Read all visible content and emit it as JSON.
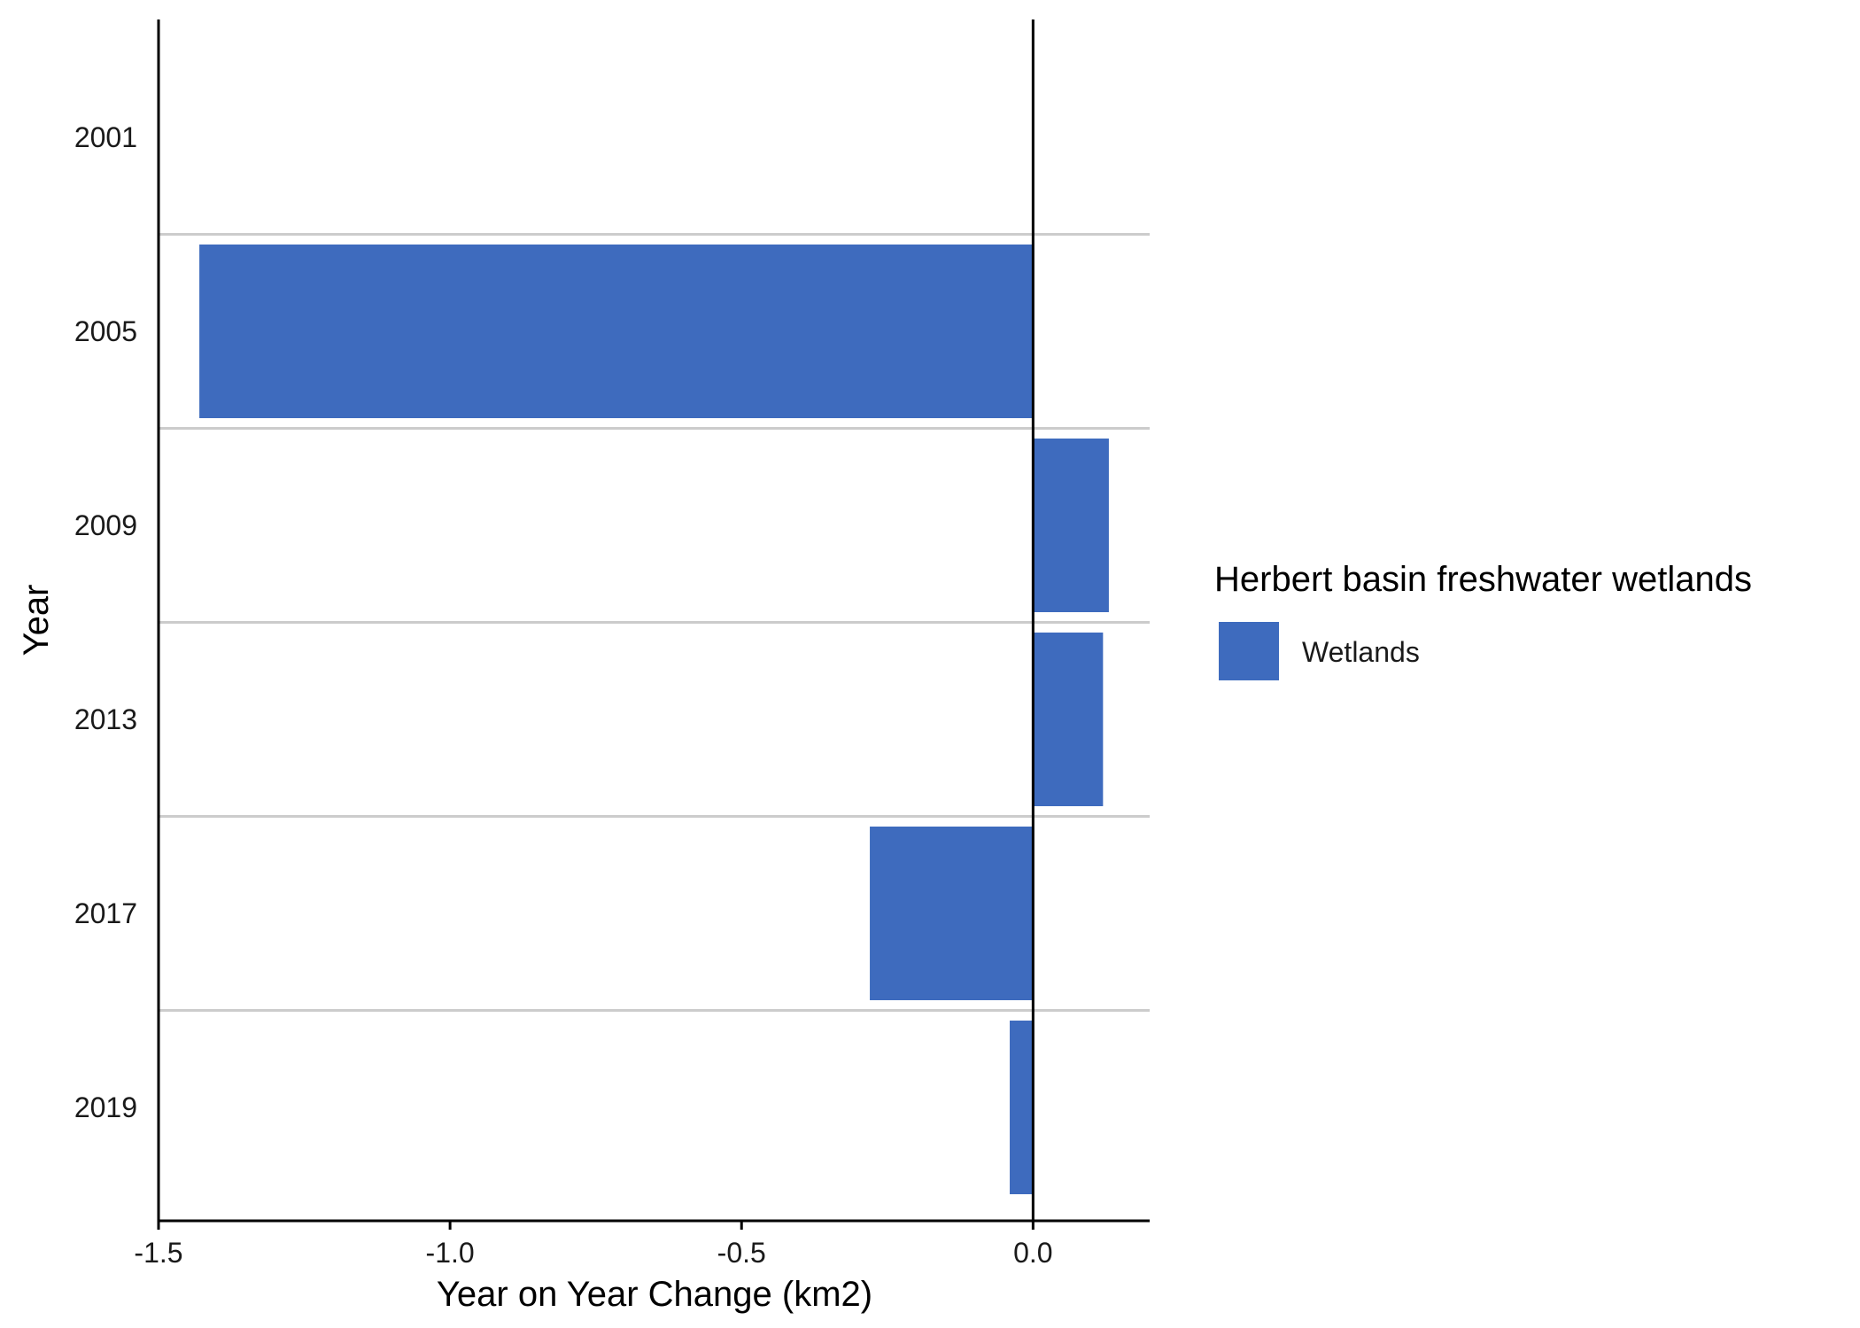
{
  "chart_data": {
    "type": "bar",
    "orientation": "horizontal",
    "categories": [
      "2001",
      "2005",
      "2009",
      "2013",
      "2017",
      "2019"
    ],
    "series": [
      {
        "name": "Wetlands",
        "values": [
          0,
          -1.43,
          0.13,
          0.12,
          -0.28,
          -0.04
        ]
      }
    ],
    "xlabel": "Year on Year Change (km2)",
    "ylabel": "Year",
    "xlim": [
      -1.5,
      0.2
    ],
    "xticks": [
      -1.5,
      -1.0,
      -0.5,
      0.0
    ],
    "xtick_labels": [
      "-1.5",
      "-1.0",
      "-0.5",
      "0.0"
    ],
    "legend": {
      "title": "Herbert basin freshwater wetlands",
      "position": "right",
      "items": [
        "Wetlands"
      ]
    },
    "colors": {
      "Wetlands": "#3e6bbe"
    },
    "grid": "horizontal separator lines between categories",
    "zero_line": true
  }
}
